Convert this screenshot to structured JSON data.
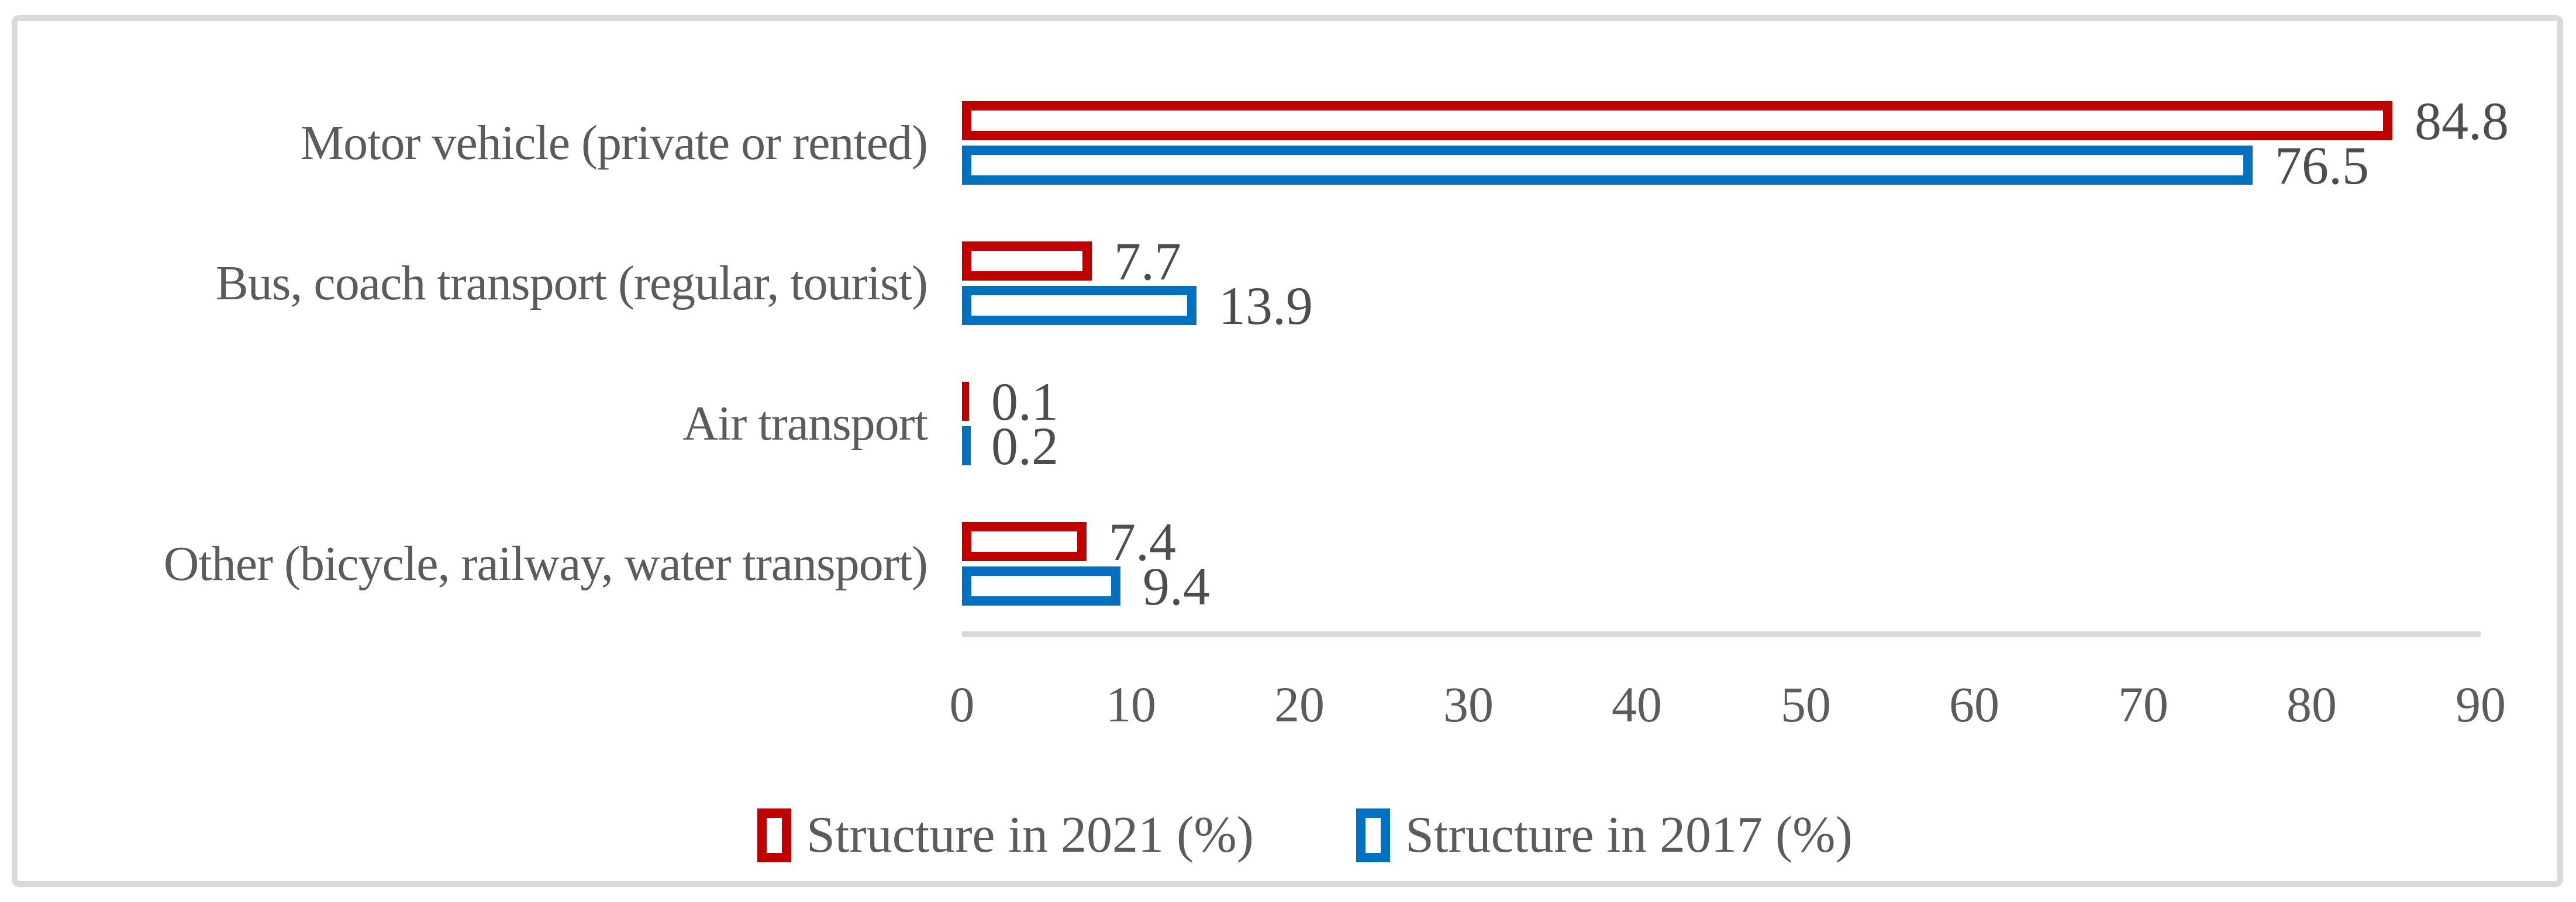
{
  "chart_data": {
    "type": "bar",
    "orientation": "horizontal",
    "title": "",
    "categories": [
      "Motor vehicle (private or rented)",
      "Bus, coach transport (regular, tourist)",
      "Air transport",
      "Other (bicycle, railway, water transport)"
    ],
    "series": [
      {
        "name": "Structure in 2021 (%)",
        "color": "#C00000",
        "values": [
          84.8,
          7.7,
          0.1,
          7.4
        ]
      },
      {
        "name": "Structure in 2017 (%)",
        "color": "#0070C0",
        "values": [
          76.5,
          13.9,
          0.2,
          9.4
        ]
      }
    ],
    "data_labels": [
      [
        "84.8",
        "7.7",
        "0.1",
        "7.4"
      ],
      [
        "76.5",
        "13.9",
        "0.2",
        "9.4"
      ]
    ],
    "xlabel": "",
    "ylabel": "",
    "xlim": [
      0,
      90
    ],
    "xticks": [
      0,
      10,
      20,
      30,
      40,
      50,
      60,
      70,
      80,
      90
    ],
    "grid": false,
    "legend_position": "bottom",
    "bar_style": "hollow-outline",
    "colors": {
      "series_2021": "#C00000",
      "series_2017": "#0070C0",
      "text": "#5b5b5b",
      "value_text": "#4d4d4d",
      "axis_line": "#D9D9D9",
      "frame_border": "#D9D9D9",
      "background": "#ffffff"
    }
  }
}
